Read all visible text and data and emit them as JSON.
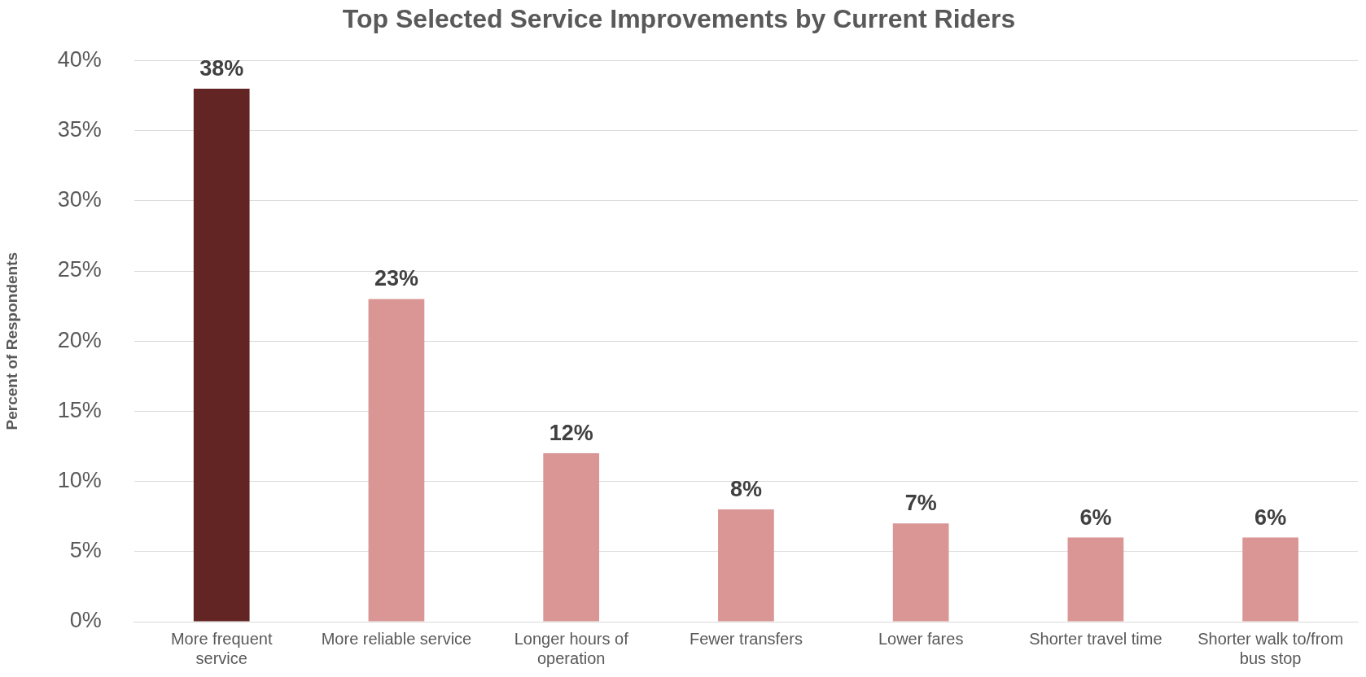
{
  "chart_data": {
    "type": "bar",
    "title": "Top Selected Service Improvements by Current Riders",
    "ylabel": "Percent of Respondents",
    "categories": [
      "More frequent service",
      "More reliable service",
      "Longer hours of operation",
      "Fewer transfers",
      "Lower fares",
      "Shorter travel time",
      "Shorter walk to/from bus stop"
    ],
    "values": [
      38,
      23,
      12,
      8,
      7,
      6,
      6
    ],
    "value_labels": [
      "38%",
      "23%",
      "12%",
      "8%",
      "7%",
      "6%",
      "6%"
    ],
    "colors": [
      "#632523",
      "#d99694",
      "#d99694",
      "#d99694",
      "#d99694",
      "#d99694",
      "#d99694"
    ],
    "ylim": [
      0,
      40
    ],
    "yticks": [
      {
        "value": 0,
        "label": "0%"
      },
      {
        "value": 5,
        "label": "5%"
      },
      {
        "value": 10,
        "label": "10%"
      },
      {
        "value": 15,
        "label": "15%"
      },
      {
        "value": 20,
        "label": "20%"
      },
      {
        "value": 25,
        "label": "25%"
      },
      {
        "value": 30,
        "label": "30%"
      },
      {
        "value": 35,
        "label": "35%"
      },
      {
        "value": 40,
        "label": "40%"
      }
    ],
    "grid": "y"
  }
}
